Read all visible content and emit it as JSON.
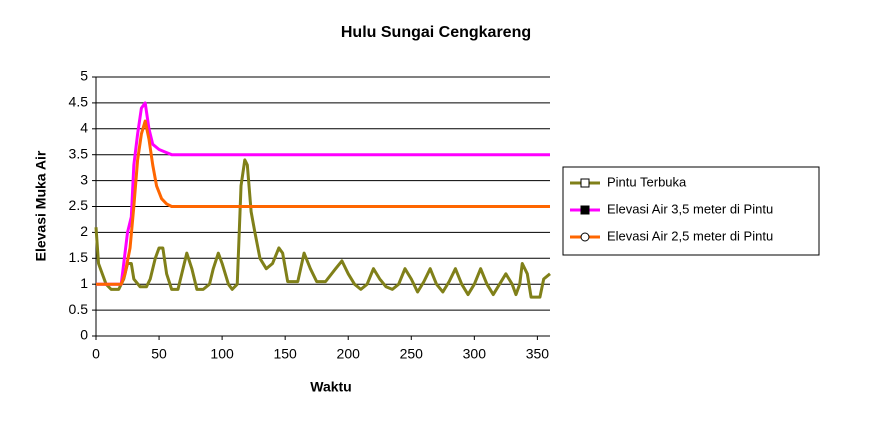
{
  "chart_data": {
    "type": "line",
    "title": "Hulu Sungai Cengkareng",
    "xlabel": "Waktu",
    "ylabel": "Elevasi Muka Air",
    "xlim": [
      0,
      360
    ],
    "xticks": [
      0,
      50,
      100,
      150,
      200,
      250,
      300,
      350
    ],
    "ylim": [
      0,
      5
    ],
    "yticks": [
      0,
      0.5,
      1,
      1.5,
      2,
      2.5,
      3,
      3.5,
      4,
      4.5,
      5
    ],
    "grid": true,
    "legend": "right",
    "series": [
      {
        "name": "Pintu Terbuka",
        "color": "#808019",
        "marker": "square",
        "x": [
          0,
          2,
          5,
          8,
          12,
          18,
          22,
          25,
          28,
          30,
          35,
          40,
          43,
          47,
          50,
          53,
          56,
          60,
          65,
          68,
          72,
          76,
          80,
          85,
          90,
          93,
          97,
          100,
          105,
          108,
          112,
          115,
          118,
          120,
          123,
          126,
          130,
          135,
          140,
          145,
          148,
          152,
          160,
          165,
          170,
          175,
          182,
          190,
          195,
          200,
          205,
          210,
          215,
          220,
          225,
          230,
          235,
          240,
          245,
          250,
          255,
          260,
          265,
          270,
          275,
          280,
          285,
          290,
          295,
          300,
          305,
          310,
          315,
          320,
          325,
          330,
          333,
          336,
          338,
          342,
          345,
          352,
          355,
          360
        ],
        "values": [
          2.1,
          1.4,
          1.2,
          1.0,
          0.9,
          0.9,
          1.1,
          1.4,
          1.4,
          1.1,
          0.95,
          0.95,
          1.1,
          1.5,
          1.7,
          1.7,
          1.2,
          0.9,
          0.9,
          1.2,
          1.6,
          1.3,
          0.9,
          0.9,
          1.0,
          1.3,
          1.6,
          1.4,
          1.0,
          0.9,
          1.0,
          2.9,
          3.4,
          3.3,
          2.4,
          2.0,
          1.5,
          1.3,
          1.4,
          1.7,
          1.6,
          1.05,
          1.05,
          1.6,
          1.3,
          1.05,
          1.05,
          1.3,
          1.45,
          1.2,
          1.0,
          0.9,
          1.0,
          1.3,
          1.1,
          0.95,
          0.9,
          1.0,
          1.3,
          1.1,
          0.85,
          1.05,
          1.3,
          1.0,
          0.85,
          1.05,
          1.3,
          1.0,
          0.8,
          1.0,
          1.3,
          1.0,
          0.8,
          1.0,
          1.2,
          1.0,
          0.8,
          1.0,
          1.4,
          1.2,
          0.75,
          0.75,
          1.1,
          1.2
        ]
      },
      {
        "name": "Elevasi Air 3,5 meter di Pintu",
        "color": "#ff00ff",
        "marker": "filled-square",
        "x": [
          0,
          20,
          22,
          25,
          28,
          30,
          33,
          36,
          39,
          42,
          45,
          50,
          55,
          60,
          360
        ],
        "values": [
          1.0,
          1.0,
          1.4,
          2.0,
          2.3,
          3.3,
          3.9,
          4.4,
          4.5,
          4.0,
          3.7,
          3.6,
          3.55,
          3.5,
          3.5
        ]
      },
      {
        "name": "Elevasi Air 2,5 meter di Pintu",
        "color": "#ff6600",
        "marker": "circle",
        "x": [
          0,
          20,
          23,
          27,
          30,
          33,
          36,
          39,
          42,
          45,
          48,
          52,
          56,
          60,
          360
        ],
        "values": [
          1.0,
          1.0,
          1.2,
          1.7,
          2.5,
          3.4,
          3.9,
          4.15,
          3.8,
          3.3,
          2.9,
          2.65,
          2.55,
          2.5,
          2.5
        ]
      }
    ]
  }
}
